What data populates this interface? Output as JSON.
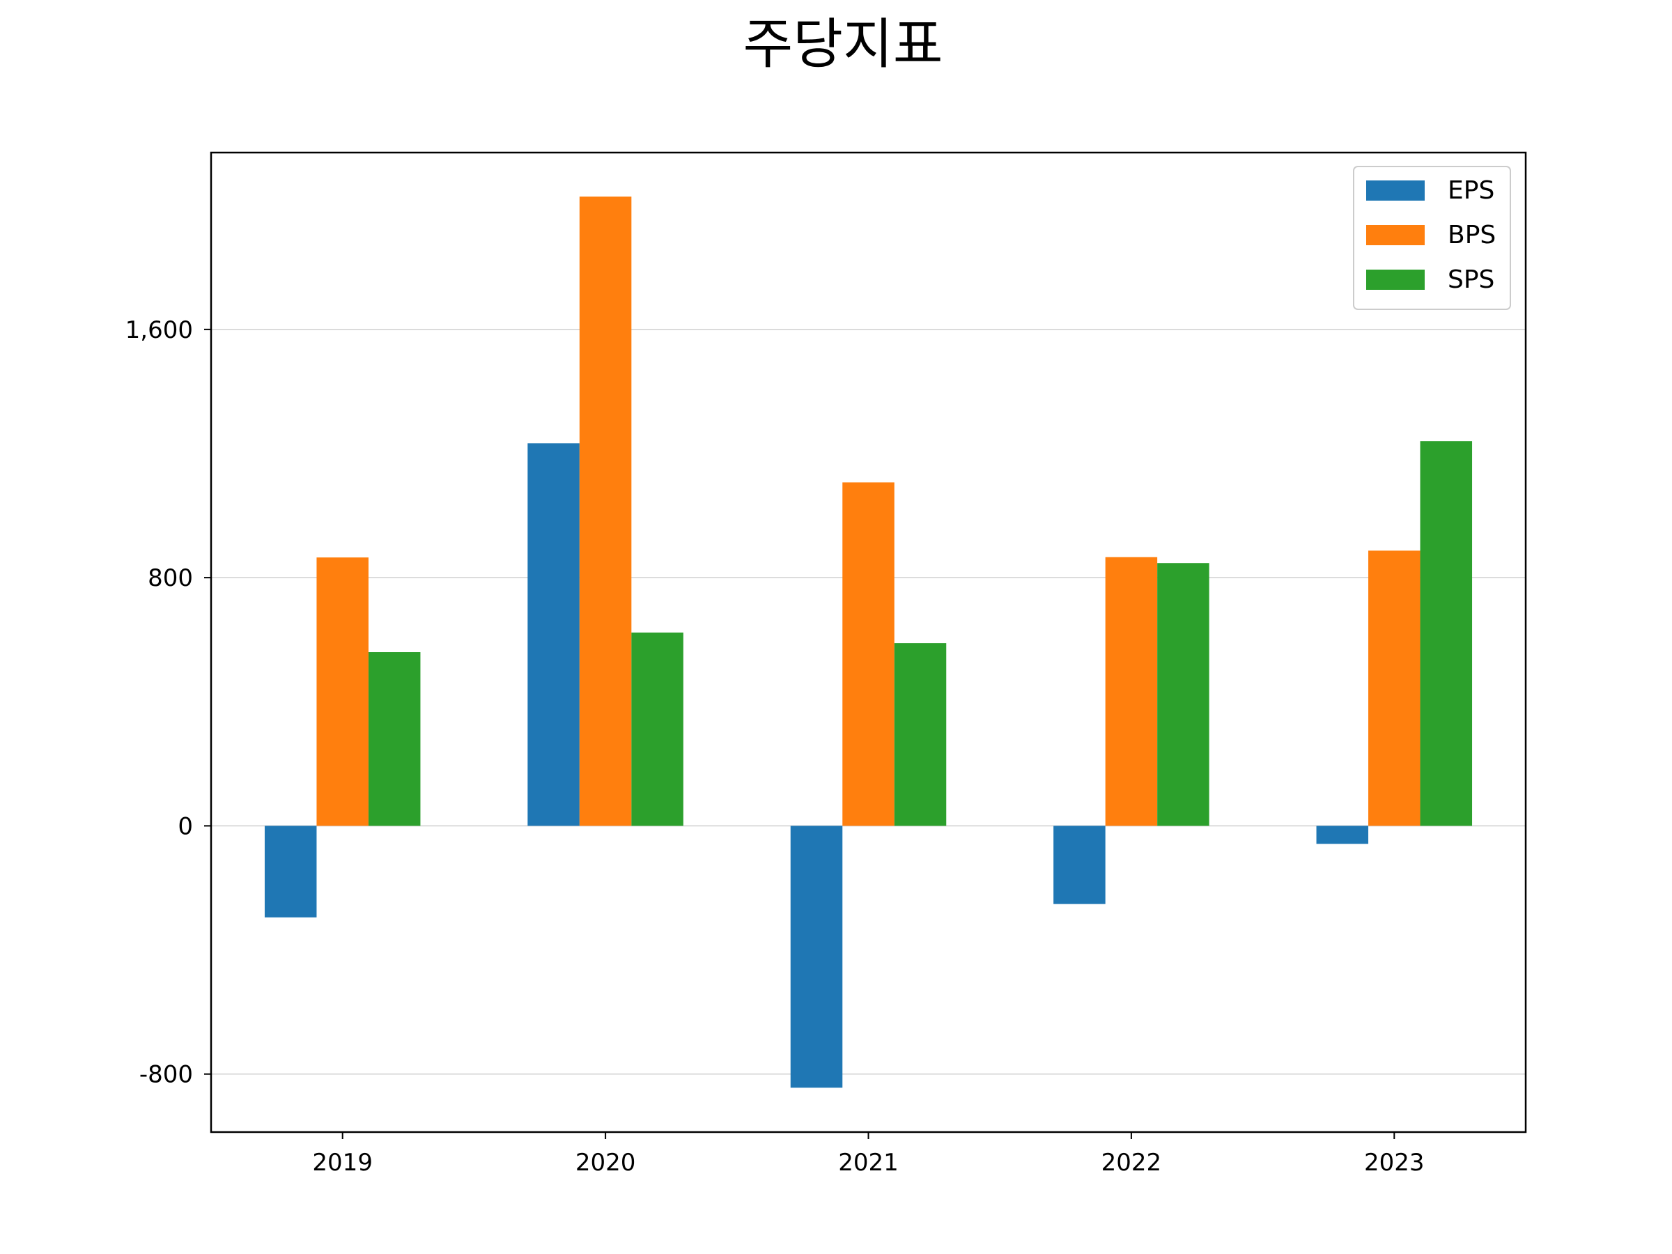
{
  "chart_data": {
    "type": "bar",
    "title": "주당지표",
    "xlabel": "",
    "ylabel": "",
    "categories": [
      "2019",
      "2020",
      "2021",
      "2022",
      "2023"
    ],
    "series": [
      {
        "name": "EPS",
        "color": "#1f77b4",
        "values": [
          -295,
          1233,
          -844,
          -252,
          -58
        ]
      },
      {
        "name": "BPS",
        "color": "#ff7f0e",
        "values": [
          865,
          2028,
          1107,
          866,
          887
        ]
      },
      {
        "name": "SPS",
        "color": "#2ca02c",
        "values": [
          560,
          623,
          589,
          847,
          1240
        ]
      }
    ],
    "yticks": [
      -800,
      0,
      800,
      1600
    ],
    "ytick_labels": [
      "-800",
      "0",
      "800",
      "1,600"
    ],
    "ylim": [
      -987,
      2170
    ],
    "grid": "y-major",
    "legend": "top-right"
  }
}
